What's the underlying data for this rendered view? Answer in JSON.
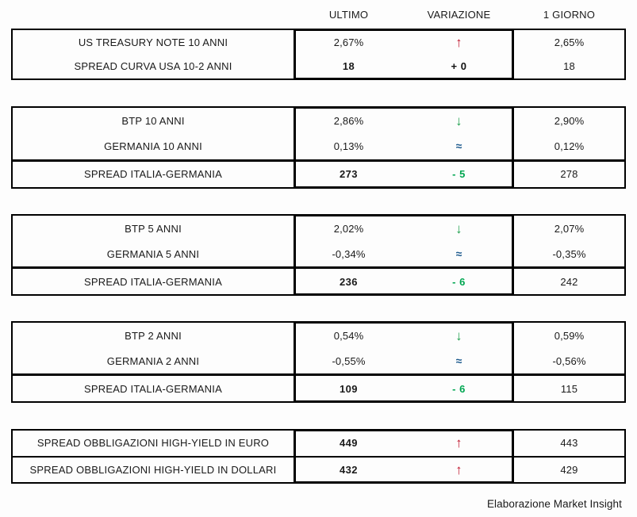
{
  "header": {
    "ultimo": "ULTIMO",
    "variazione": "VARIAZIONE",
    "giorno": "1 GIORNO"
  },
  "footer": {
    "credit": "Elaborazione Market Insight"
  },
  "colors": {
    "up_red": "#c1182f",
    "down_green": "#1fa04e",
    "flat_blue": "#1f5c8f",
    "delta_green": "#00a651",
    "text": "#1a1a1a",
    "border": "#000000"
  },
  "tables": [
    {
      "name": "us-treasury",
      "rows": [
        {
          "label": "US TREASURY NOTE 10 ANNI",
          "ultimo": "2,67%",
          "variation": {
            "glyph": "↑",
            "type": "up"
          },
          "giorno": "2,65%"
        },
        {
          "label": "SPREAD CURVA USA 10-2 ANNI",
          "ultimo": "18",
          "variation": {
            "glyph": "+ 0",
            "type": "neutral"
          },
          "giorno": "18"
        }
      ]
    },
    {
      "name": "btp-10-anni",
      "rows": [
        {
          "label": "BTP 10 ANNI",
          "ultimo": "2,86%",
          "variation": {
            "glyph": "↓",
            "type": "down"
          },
          "giorno": "2,90%"
        },
        {
          "label": "GERMANIA 10 ANNI",
          "ultimo": "0,13%",
          "variation": {
            "glyph": "≈",
            "type": "flat"
          },
          "giorno": "0,12%"
        },
        {
          "label": "SPREAD ITALIA-GERMANIA",
          "ultimo": "273",
          "variation": {
            "glyph": "- 5",
            "type": "down-text"
          },
          "giorno": "278"
        }
      ]
    },
    {
      "name": "btp-5-anni",
      "rows": [
        {
          "label": "BTP 5 ANNI",
          "ultimo": "2,02%",
          "variation": {
            "glyph": "↓",
            "type": "down"
          },
          "giorno": "2,07%"
        },
        {
          "label": "GERMANIA 5 ANNI",
          "ultimo": "-0,34%",
          "variation": {
            "glyph": "≈",
            "type": "flat"
          },
          "giorno": "-0,35%"
        },
        {
          "label": "SPREAD ITALIA-GERMANIA",
          "ultimo": "236",
          "variation": {
            "glyph": "- 6",
            "type": "down-text"
          },
          "giorno": "242"
        }
      ]
    },
    {
      "name": "btp-2-anni",
      "rows": [
        {
          "label": "BTP 2 ANNI",
          "ultimo": "0,54%",
          "variation": {
            "glyph": "↓",
            "type": "down"
          },
          "giorno": "0,59%"
        },
        {
          "label": "GERMANIA 2 ANNI",
          "ultimo": "-0,55%",
          "variation": {
            "glyph": "≈",
            "type": "flat"
          },
          "giorno": "-0,56%"
        },
        {
          "label": "SPREAD ITALIA-GERMANIA",
          "ultimo": "109",
          "variation": {
            "glyph": "- 6",
            "type": "down-text"
          },
          "giorno": "115"
        }
      ]
    },
    {
      "name": "high-yield",
      "rows": [
        {
          "label": "SPREAD OBBLIGAZIONI HIGH-YIELD IN EURO",
          "ultimo": "449",
          "variation": {
            "glyph": "↑",
            "type": "up"
          },
          "giorno": "443"
        },
        {
          "label": "SPREAD OBBLIGAZIONI HIGH-YIELD IN DOLLARI",
          "ultimo": "432",
          "variation": {
            "glyph": "↑",
            "type": "up"
          },
          "giorno": "429"
        }
      ]
    }
  ],
  "chart_data": {
    "type": "table",
    "columns": [
      "",
      "ULTIMO",
      "VARIAZIONE",
      "1 GIORNO"
    ],
    "rows": [
      [
        "US TREASURY NOTE 10 ANNI",
        "2,67%",
        "↑",
        "2,65%"
      ],
      [
        "SPREAD CURVA USA 10-2 ANNI",
        "18",
        "+ 0",
        "18"
      ],
      [
        "BTP 10 ANNI",
        "2,86%",
        "↓",
        "2,90%"
      ],
      [
        "GERMANIA 10 ANNI",
        "0,13%",
        "≈",
        "0,12%"
      ],
      [
        "SPREAD ITALIA-GERMANIA",
        "273",
        "- 5",
        "278"
      ],
      [
        "BTP 5 ANNI",
        "2,02%",
        "↓",
        "2,07%"
      ],
      [
        "GERMANIA 5 ANNI",
        "-0,34%",
        "≈",
        "-0,35%"
      ],
      [
        "SPREAD ITALIA-GERMANIA",
        "236",
        "- 6",
        "242"
      ],
      [
        "BTP 2 ANNI",
        "0,54%",
        "↓",
        "0,59%"
      ],
      [
        "GERMANIA 2 ANNI",
        "-0,55%",
        "≈",
        "-0,56%"
      ],
      [
        "SPREAD ITALIA-GERMANIA",
        "109",
        "- 6",
        "115"
      ],
      [
        "SPREAD OBBLIGAZIONI HIGH-YIELD IN EURO",
        "449",
        "↑",
        "443"
      ],
      [
        "SPREAD OBBLIGAZIONI HIGH-YIELD IN DOLLARI",
        "432",
        "↑",
        "429"
      ]
    ],
    "legend": "none",
    "grid": "table-borders",
    "source": "Elaborazione Market Insight"
  }
}
